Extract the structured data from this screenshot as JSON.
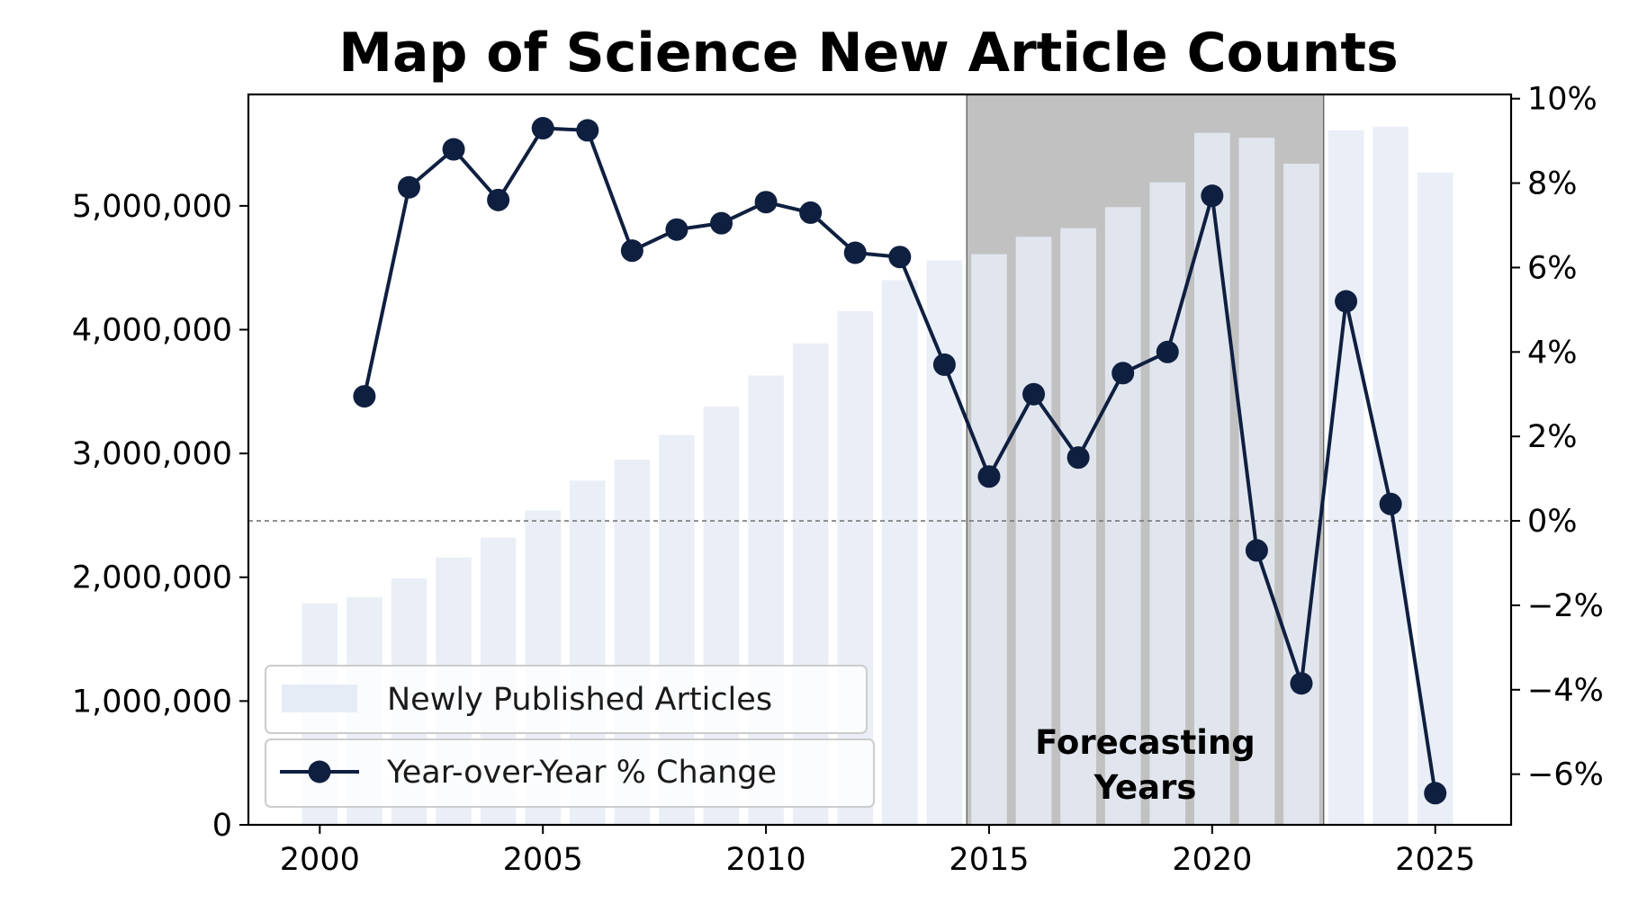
{
  "chart_data": {
    "type": "bar",
    "title": "Map of Science New Article Counts",
    "xlabel": "",
    "ylabel": "",
    "x": [
      2000,
      2001,
      2002,
      2003,
      2004,
      2005,
      2006,
      2007,
      2008,
      2009,
      2010,
      2011,
      2012,
      2013,
      2014,
      2015,
      2016,
      2017,
      2018,
      2019,
      2020,
      2021,
      2022,
      2023,
      2024,
      2025
    ],
    "xlim": [
      1998.4,
      2026.7
    ],
    "xticks": [
      2000,
      2005,
      2010,
      2015,
      2020,
      2025
    ],
    "xtick_labels": [
      "2000",
      "2005",
      "2010",
      "2015",
      "2020",
      "2025"
    ],
    "series": [
      {
        "name": "Newly Published Articles",
        "type": "bar",
        "axis": "left",
        "color": "#e6ecf6",
        "values": [
          1790000,
          1840000,
          1990000,
          2160000,
          2320000,
          2540000,
          2780000,
          2950000,
          3150000,
          3380000,
          3630000,
          3890000,
          4150000,
          4400000,
          4560000,
          4610000,
          4750000,
          4820000,
          4990000,
          5190000,
          5590000,
          5550000,
          5340000,
          5610000,
          5640000,
          5270000
        ]
      },
      {
        "name": "Year-over-Year % Change",
        "type": "line",
        "axis": "right",
        "color": "#0f1f40",
        "x": [
          2001,
          2002,
          2003,
          2004,
          2005,
          2006,
          2007,
          2008,
          2009,
          2010,
          2011,
          2012,
          2013,
          2014,
          2015,
          2016,
          2017,
          2018,
          2019,
          2020,
          2021,
          2022,
          2023,
          2024,
          2025
        ],
        "values": [
          2.95,
          7.9,
          8.8,
          7.6,
          9.3,
          9.25,
          6.4,
          6.9,
          7.05,
          7.55,
          7.3,
          6.35,
          6.25,
          3.7,
          1.05,
          3.0,
          1.5,
          3.5,
          4.0,
          7.7,
          -0.7,
          -3.85,
          5.2,
          0.4,
          -6.45
        ]
      }
    ],
    "y_left": {
      "ylim": [
        0,
        5900000
      ],
      "ticks": [
        0,
        1000000,
        2000000,
        3000000,
        4000000,
        5000000
      ],
      "tick_labels": [
        "0",
        "1,000,000",
        "2,000,000",
        "3,000,000",
        "4,000,000",
        "5,000,000"
      ]
    },
    "y_right": {
      "ylim": [
        -7.2,
        10.1
      ],
      "ticks": [
        -6,
        -4,
        -2,
        0,
        2,
        4,
        6,
        8,
        10
      ],
      "tick_labels": [
        "−6%",
        "−4%",
        "−2%",
        "0%",
        "2%",
        "4%",
        "6%",
        "8%",
        "10%"
      ]
    },
    "shaded_region": {
      "x_start": 2014.5,
      "x_end": 2022.5,
      "color": "#a9a9a9",
      "label_lines": [
        "Forecasting",
        "Years"
      ]
    },
    "reference_line": {
      "value": 0,
      "axis": "right",
      "style": "dashed",
      "color": "#777777"
    },
    "legend": {
      "placement": "lower-left",
      "entries": [
        "Newly Published Articles",
        "Year-over-Year % Change"
      ]
    },
    "grid": false
  }
}
